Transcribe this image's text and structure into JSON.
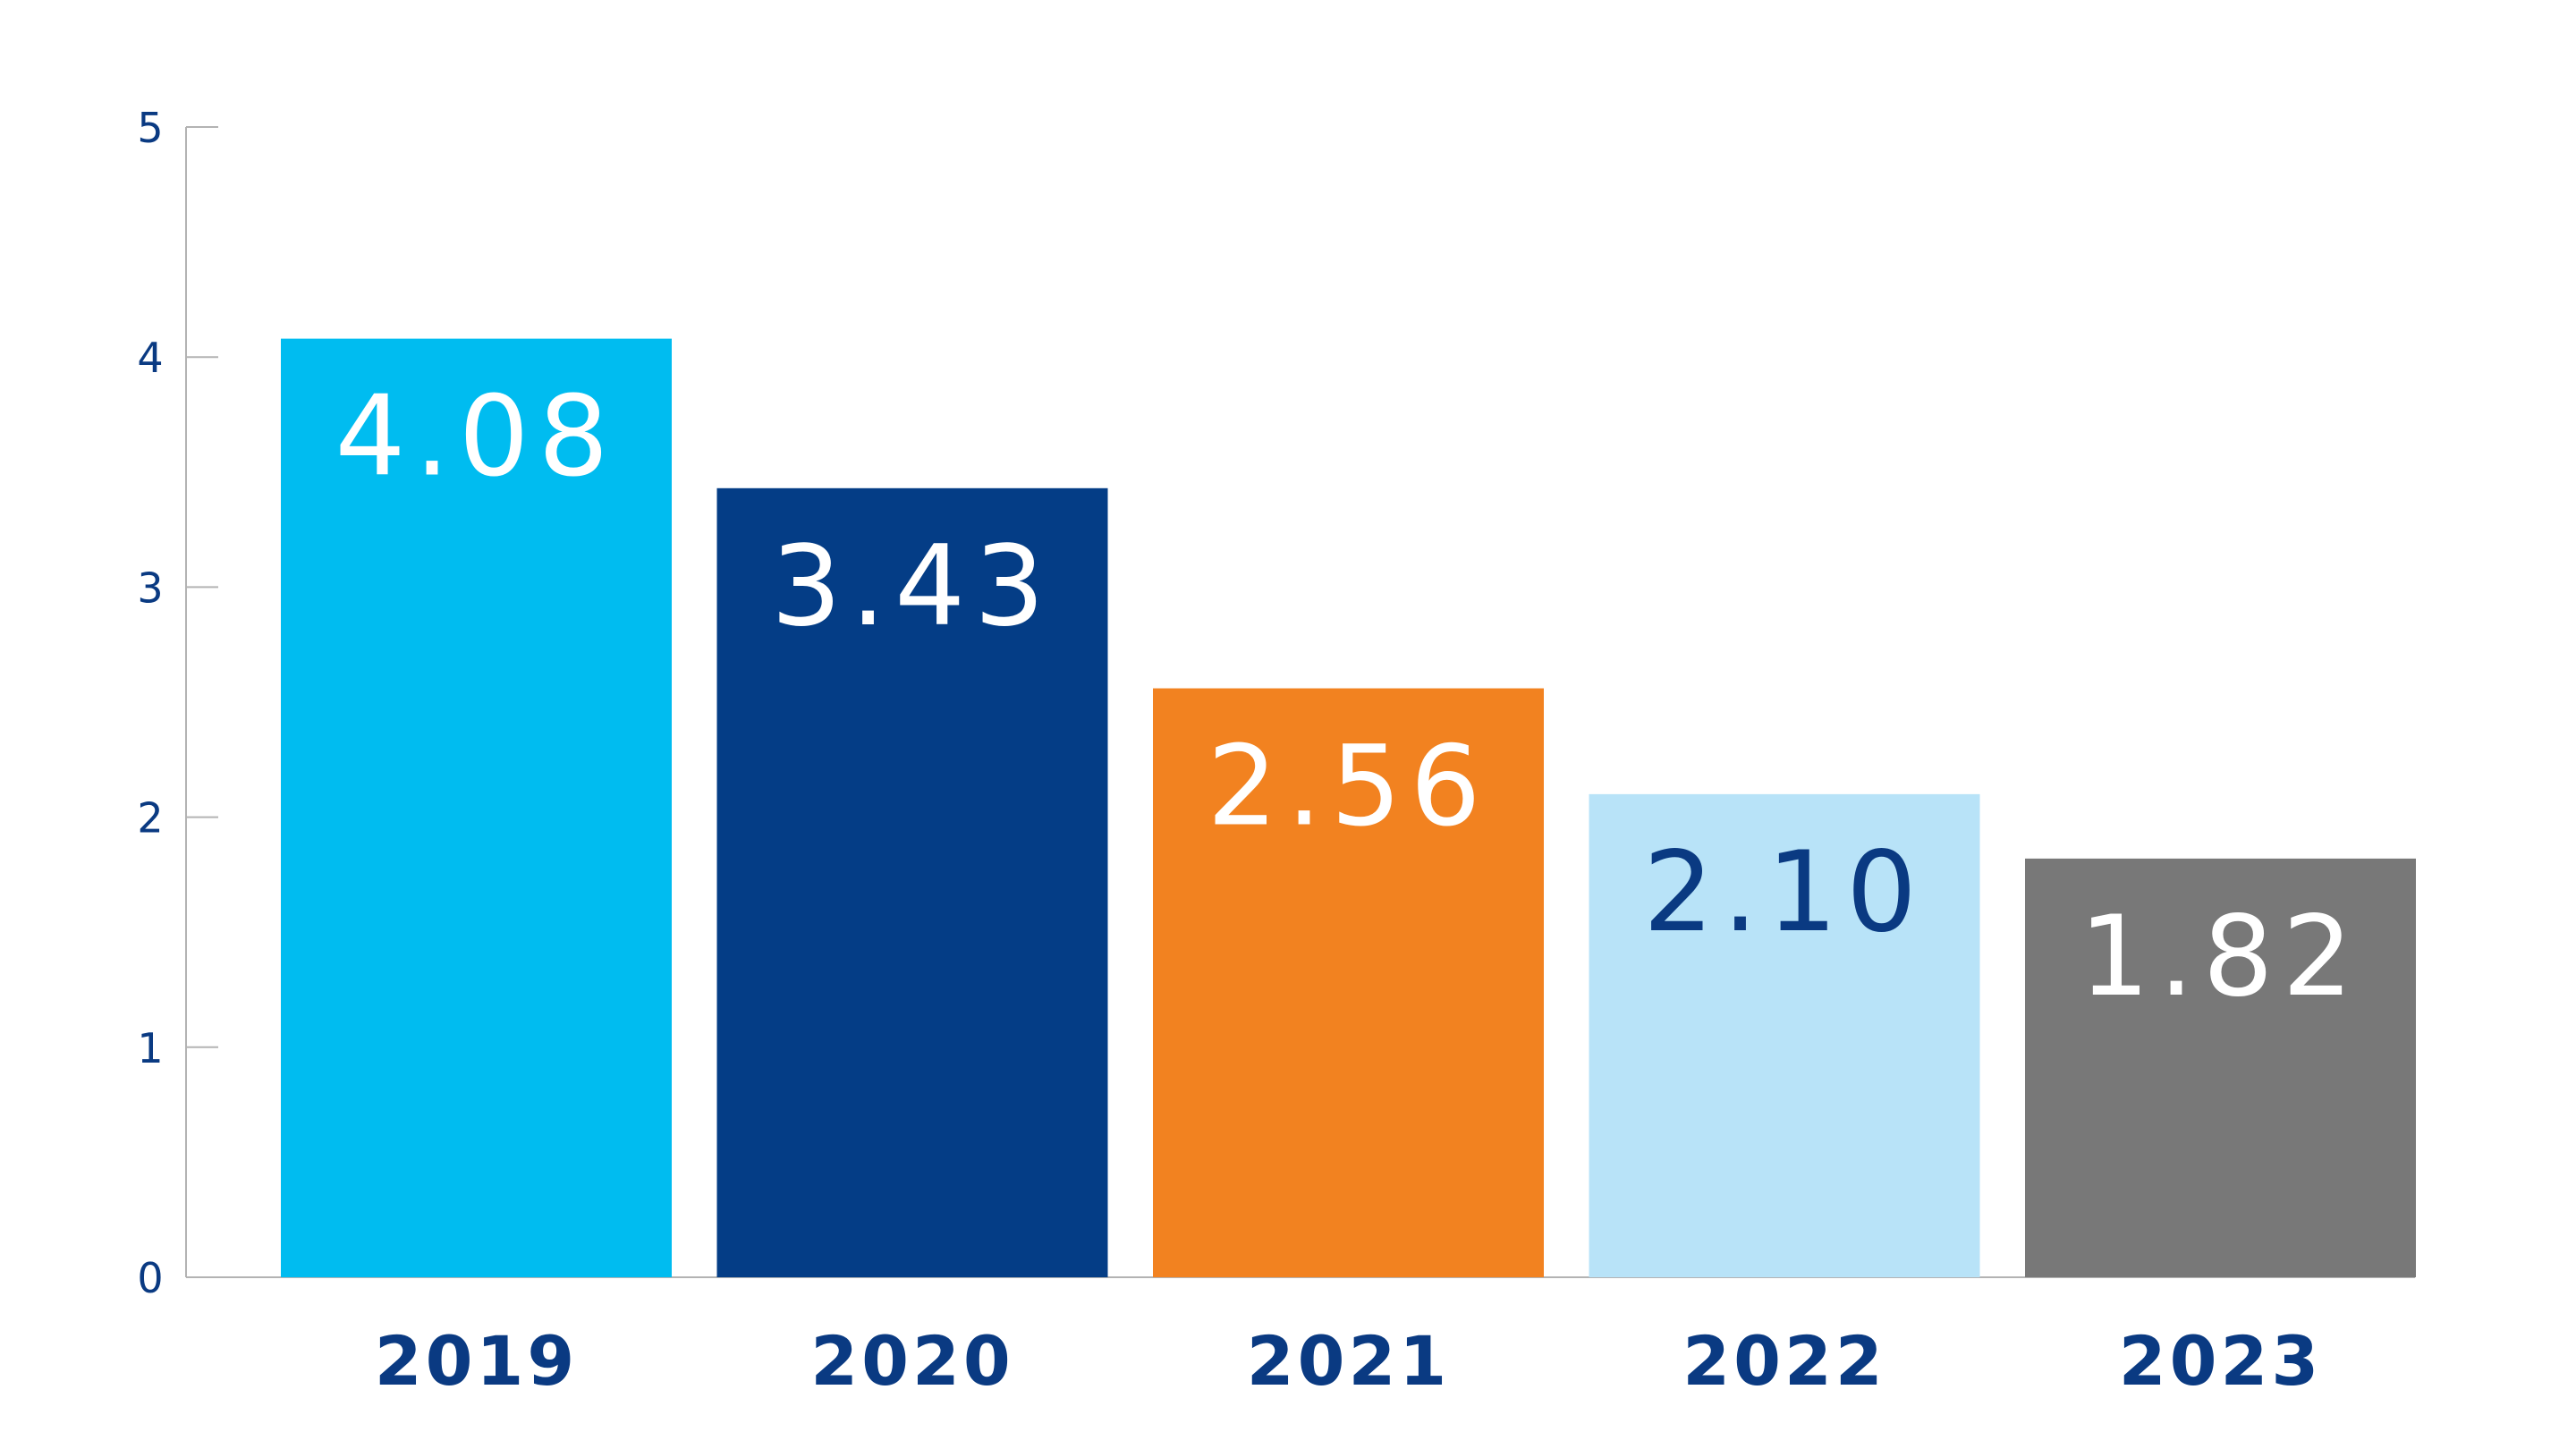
{
  "chart_data": {
    "type": "bar",
    "title": "",
    "xlabel": "",
    "ylabel": "",
    "categories": [
      "2019",
      "2020",
      "2021",
      "2022",
      "2023"
    ],
    "values": [
      4.08,
      3.43,
      2.56,
      2.1,
      1.82
    ],
    "value_labels": [
      "4.08",
      "3.43",
      "2.56",
      "2.10",
      "1.82"
    ],
    "bar_colors": [
      "#00bcf0",
      "#043d86",
      "#f28220",
      "#b8e3f8",
      "#787878"
    ],
    "value_label_colors": [
      "#ffffff",
      "#ffffff",
      "#ffffff",
      "#0a3a82",
      "#ffffff"
    ],
    "ylim": [
      0,
      5
    ],
    "yticks": [
      0,
      1,
      2,
      3,
      4,
      5
    ],
    "ytick_labels": [
      "0",
      "1",
      "2",
      "3",
      "4",
      "5"
    ],
    "grid": false,
    "legend": "none"
  }
}
